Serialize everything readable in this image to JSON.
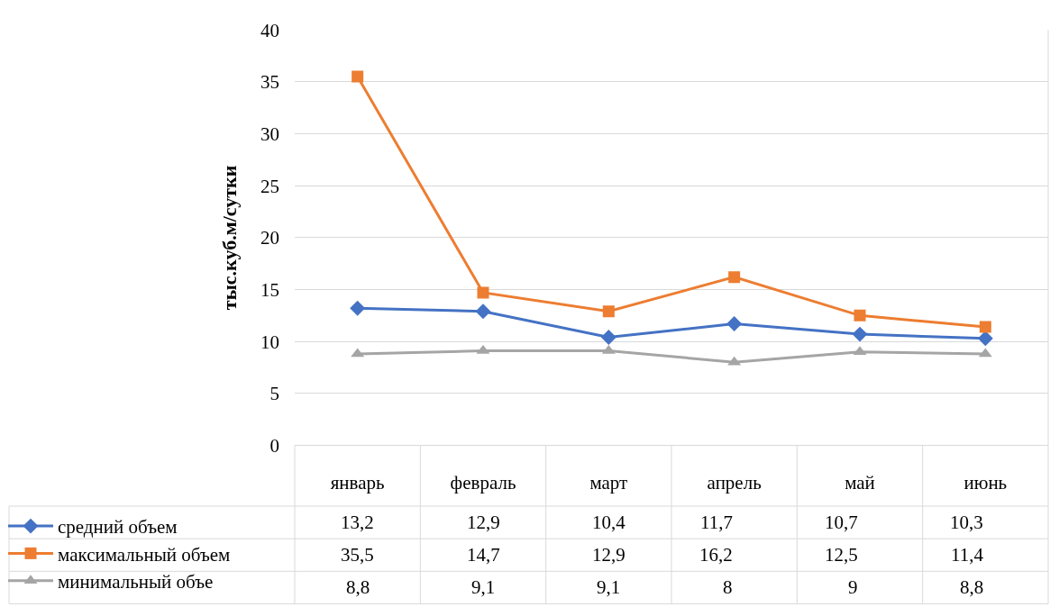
{
  "chart_data": {
    "type": "line",
    "ylabel": "тыс.куб.м/сутки",
    "categories": [
      "январь",
      "февраль",
      "март",
      "апрель",
      "май",
      "июнь"
    ],
    "ylim": [
      0,
      40
    ],
    "yticks": [
      0,
      5,
      10,
      15,
      20,
      25,
      30,
      35,
      40
    ],
    "grid": "y",
    "legend": "bottom left",
    "series": [
      {
        "name": "средний объем",
        "color": "#4472c4",
        "marker": "diamond",
        "values": [
          13.2,
          12.9,
          10.4,
          11.7,
          10.7,
          10.3
        ],
        "value_labels": [
          "13,2",
          "12,9",
          "10,4",
          "11,7",
          "10,7",
          "10,3"
        ]
      },
      {
        "name": "максимальный объем",
        "color": "#ed7d31",
        "marker": "square",
        "values": [
          35.5,
          14.7,
          12.9,
          16.2,
          12.5,
          11.4
        ],
        "value_labels": [
          "35,5",
          "14,7",
          "12,9",
          "16,2",
          "12,5",
          "11,4"
        ]
      },
      {
        "name": "минимальный объе",
        "color": "#a5a5a5",
        "marker": "triangle",
        "values": [
          8.8,
          9.1,
          9.1,
          8,
          9,
          8.8
        ],
        "value_labels": [
          "8,8",
          "9,1",
          "9,1",
          "8",
          "9",
          "8,8"
        ]
      }
    ]
  }
}
